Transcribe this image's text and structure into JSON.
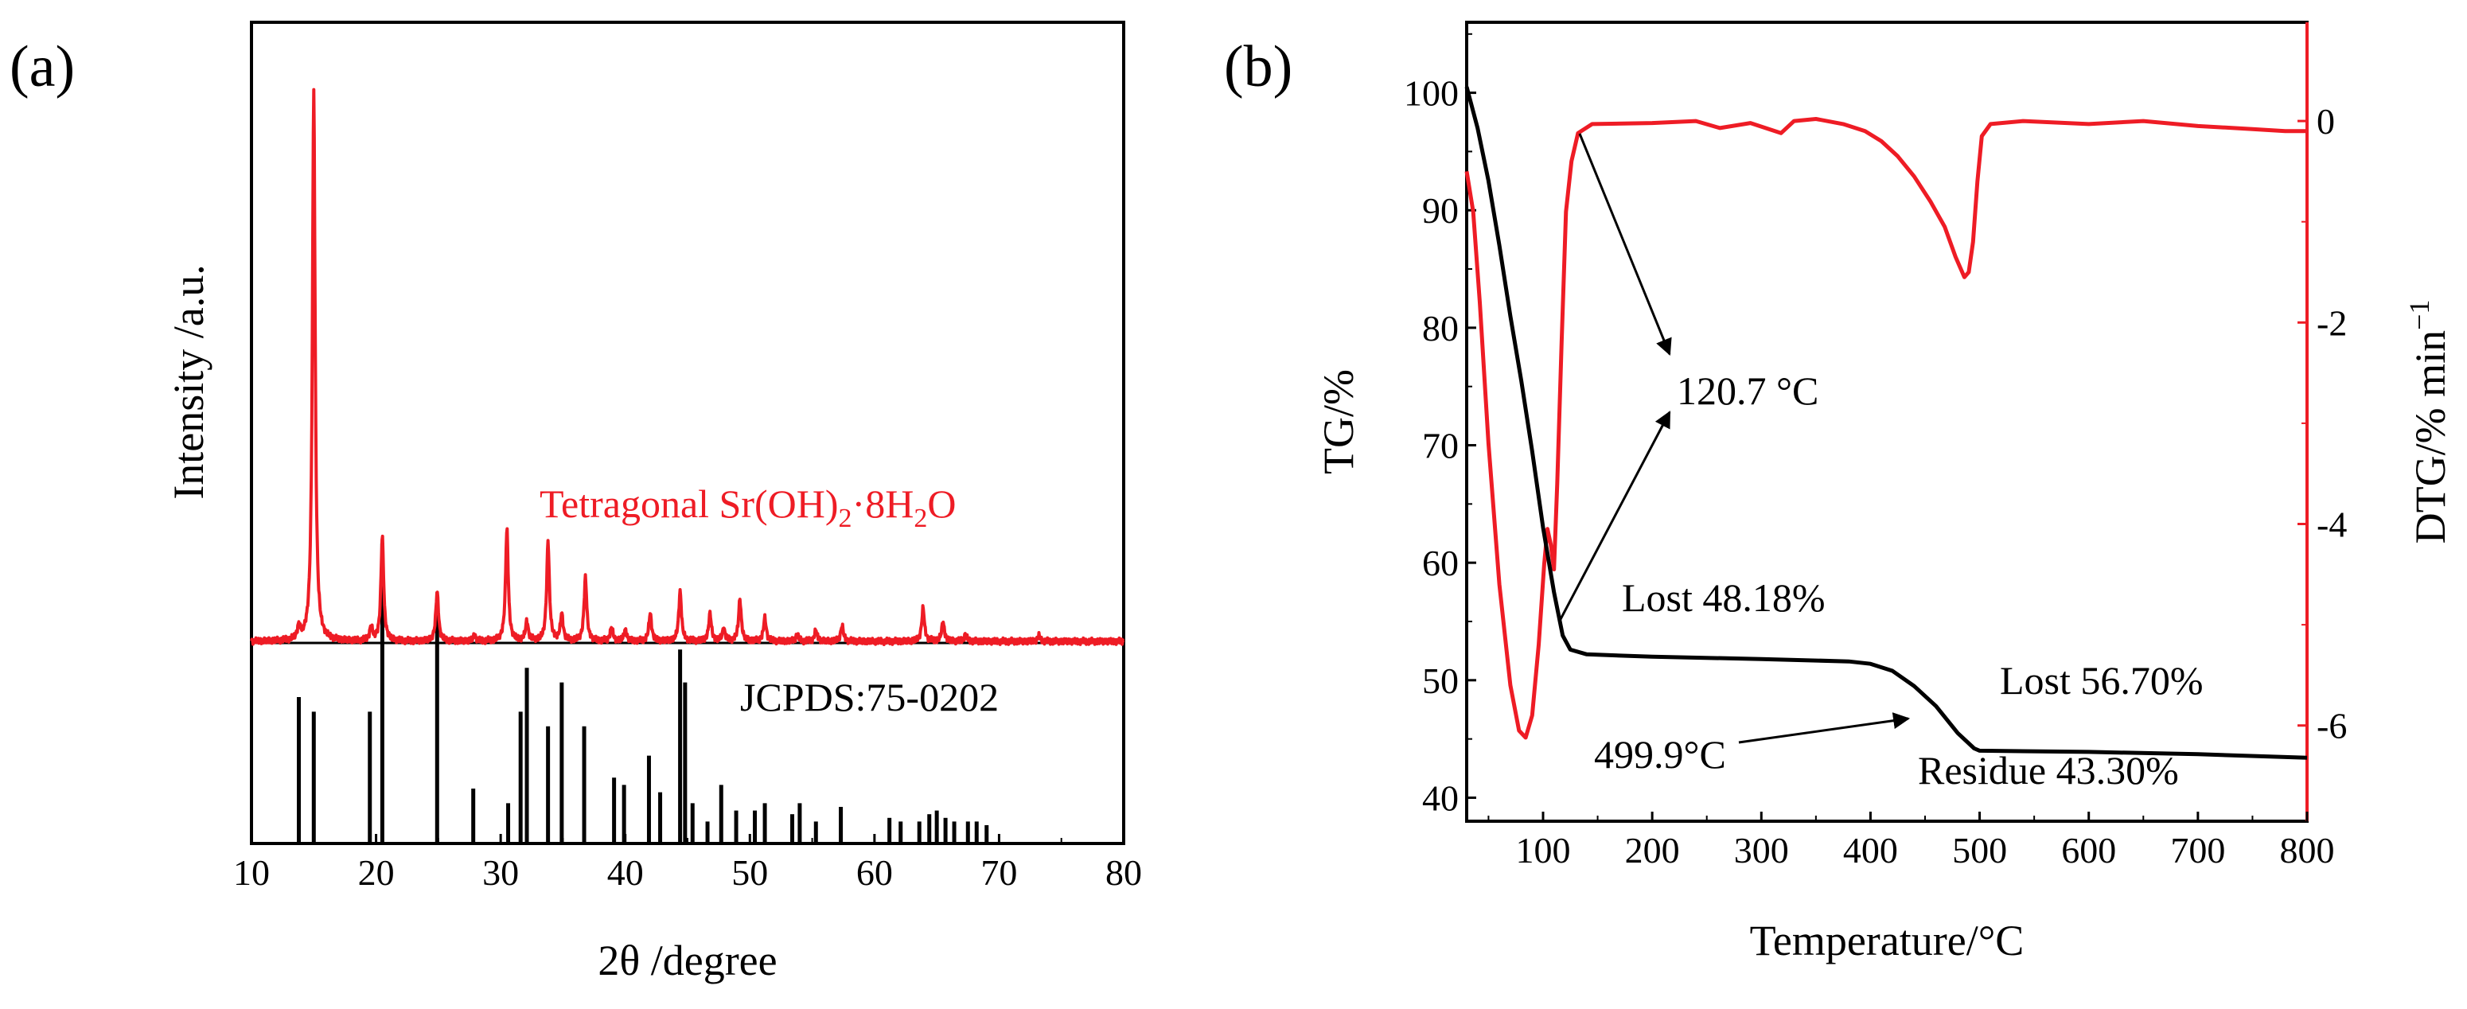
{
  "chart_data": [
    {
      "panel": "(a)",
      "type": "line",
      "xlabel": "2θ /degree",
      "ylabel": "Intensity /a.u.",
      "xlim": [
        10,
        80
      ],
      "x_ticks": [
        "10",
        "20",
        "30",
        "40",
        "50",
        "60",
        "70",
        "80"
      ],
      "colors": {
        "pattern": "#ee1c25",
        "reference": "#000000"
      },
      "pattern_label": {
        "prefix": "Tetragonal Sr(OH)",
        "sub1": "2",
        "mid": "·8H",
        "sub2": "2",
        "suffix": "O"
      },
      "reference_label": "JCPDS:75-0202",
      "pattern_peaks": [
        {
          "x": 13.8,
          "h": 2.2
        },
        {
          "x": 15.0,
          "h": 100
        },
        {
          "x": 19.6,
          "h": 2.5
        },
        {
          "x": 20.5,
          "h": 19.0
        },
        {
          "x": 24.9,
          "h": 9.0
        },
        {
          "x": 27.9,
          "h": 1.0
        },
        {
          "x": 30.5,
          "h": 20.3
        },
        {
          "x": 32.1,
          "h": 3.5
        },
        {
          "x": 33.8,
          "h": 18.0
        },
        {
          "x": 34.9,
          "h": 4.8
        },
        {
          "x": 36.8,
          "h": 11.5
        },
        {
          "x": 38.9,
          "h": 2.5
        },
        {
          "x": 40.0,
          "h": 2.0
        },
        {
          "x": 42.0,
          "h": 5.0
        },
        {
          "x": 44.4,
          "h": 9.0
        },
        {
          "x": 46.8,
          "h": 5.0
        },
        {
          "x": 47.9,
          "h": 2.2
        },
        {
          "x": 49.2,
          "h": 7.5
        },
        {
          "x": 51.2,
          "h": 4.2
        },
        {
          "x": 53.8,
          "h": 1.2
        },
        {
          "x": 55.3,
          "h": 2.0
        },
        {
          "x": 57.4,
          "h": 2.8
        },
        {
          "x": 63.9,
          "h": 6.0
        },
        {
          "x": 65.5,
          "h": 3.5
        },
        {
          "x": 67.3,
          "h": 1.2
        },
        {
          "x": 73.2,
          "h": 1.0
        }
      ],
      "reference_lines": [
        {
          "x": 13.8,
          "h": 40
        },
        {
          "x": 15.0,
          "h": 36
        },
        {
          "x": 19.5,
          "h": 36
        },
        {
          "x": 20.5,
          "h": 82
        },
        {
          "x": 24.9,
          "h": 65
        },
        {
          "x": 27.8,
          "h": 15
        },
        {
          "x": 30.6,
          "h": 11
        },
        {
          "x": 31.6,
          "h": 36
        },
        {
          "x": 32.1,
          "h": 48
        },
        {
          "x": 33.8,
          "h": 32
        },
        {
          "x": 34.9,
          "h": 44
        },
        {
          "x": 36.7,
          "h": 32
        },
        {
          "x": 39.1,
          "h": 18
        },
        {
          "x": 39.9,
          "h": 16
        },
        {
          "x": 41.9,
          "h": 24
        },
        {
          "x": 42.8,
          "h": 14
        },
        {
          "x": 44.4,
          "h": 53
        },
        {
          "x": 44.8,
          "h": 44
        },
        {
          "x": 45.4,
          "h": 11
        },
        {
          "x": 46.6,
          "h": 6
        },
        {
          "x": 47.7,
          "h": 16
        },
        {
          "x": 48.9,
          "h": 9
        },
        {
          "x": 50.4,
          "h": 9
        },
        {
          "x": 51.2,
          "h": 11
        },
        {
          "x": 53.4,
          "h": 8
        },
        {
          "x": 54.0,
          "h": 11
        },
        {
          "x": 55.3,
          "h": 6
        },
        {
          "x": 57.3,
          "h": 10
        },
        {
          "x": 61.2,
          "h": 7
        },
        {
          "x": 62.1,
          "h": 6
        },
        {
          "x": 63.6,
          "h": 6
        },
        {
          "x": 64.4,
          "h": 8
        },
        {
          "x": 65.0,
          "h": 9
        },
        {
          "x": 65.7,
          "h": 7
        },
        {
          "x": 66.4,
          "h": 6
        },
        {
          "x": 67.5,
          "h": 6
        },
        {
          "x": 68.2,
          "h": 6
        },
        {
          "x": 69.0,
          "h": 5
        }
      ]
    },
    {
      "panel": "(b)",
      "type": "line",
      "xlabel": "Temperature/°C",
      "ylabel": "TG/%",
      "y2label": "DTG/% min",
      "y2label_exponent": "−1",
      "xlim": [
        30,
        800
      ],
      "ylim": [
        38,
        106
      ],
      "y2lim": [
        -6.95,
        0.98
      ],
      "x_ticks": [
        {
          "v": 100,
          "label": "100"
        },
        {
          "v": 200,
          "label": "200"
        },
        {
          "v": 300,
          "label": "300"
        },
        {
          "v": 400,
          "label": "400"
        },
        {
          "v": 500,
          "label": "500"
        },
        {
          "v": 600,
          "label": "600"
        },
        {
          "v": 700,
          "label": "700"
        },
        {
          "v": 800,
          "label": "800"
        }
      ],
      "y_ticks": [
        {
          "v": 40,
          "label": "40"
        },
        {
          "v": 50,
          "label": "50"
        },
        {
          "v": 60,
          "label": "60"
        },
        {
          "v": 70,
          "label": "70"
        },
        {
          "v": 80,
          "label": "80"
        },
        {
          "v": 90,
          "label": "90"
        },
        {
          "v": 100,
          "label": "100"
        }
      ],
      "y2_ticks": [
        {
          "v": 0,
          "label": "0"
        },
        {
          "v": -2,
          "label": "-2"
        },
        {
          "v": -4,
          "label": "-4"
        },
        {
          "v": -6,
          "label": "-6"
        }
      ],
      "colors": {
        "tg": "#000000",
        "dtg": "#ee1c25"
      },
      "series": [
        {
          "name": "TG",
          "axis": "left",
          "points": [
            [
              30,
              100.5
            ],
            [
              40,
              97
            ],
            [
              50,
              92.5
            ],
            [
              60,
              87
            ],
            [
              70,
              81
            ],
            [
              80,
              75.5
            ],
            [
              90,
              69.5
            ],
            [
              100,
              63
            ],
            [
              110,
              57.5
            ],
            [
              118,
              53.8
            ],
            [
              125,
              52.6
            ],
            [
              140,
              52.2
            ],
            [
              200,
              52.0
            ],
            [
              300,
              51.8
            ],
            [
              380,
              51.6
            ],
            [
              400,
              51.4
            ],
            [
              420,
              50.8
            ],
            [
              440,
              49.5
            ],
            [
              460,
              47.8
            ],
            [
              480,
              45.5
            ],
            [
              495,
              44.2
            ],
            [
              500,
              44.0
            ],
            [
              600,
              43.9
            ],
            [
              700,
              43.7
            ],
            [
              800,
              43.4
            ]
          ]
        },
        {
          "name": "DTG",
          "axis": "right",
          "points": [
            [
              30,
              -0.5
            ],
            [
              36,
              -0.9
            ],
            [
              42,
              -1.8
            ],
            [
              50,
              -3.2
            ],
            [
              60,
              -4.6
            ],
            [
              70,
              -5.6
            ],
            [
              78,
              -6.05
            ],
            [
              84,
              -6.12
            ],
            [
              90,
              -5.9
            ],
            [
              96,
              -5.2
            ],
            [
              101,
              -4.4
            ],
            [
              104,
              -4.05
            ],
            [
              107,
              -4.2
            ],
            [
              110,
              -4.45
            ],
            [
              113,
              -3.6
            ],
            [
              117,
              -2.2
            ],
            [
              121,
              -0.9
            ],
            [
              126,
              -0.4
            ],
            [
              132,
              -0.12
            ],
            [
              145,
              -0.03
            ],
            [
              200,
              -0.02
            ],
            [
              240,
              0.0
            ],
            [
              262,
              -0.07
            ],
            [
              290,
              -0.02
            ],
            [
              318,
              -0.12
            ],
            [
              330,
              0.0
            ],
            [
              350,
              0.02
            ],
            [
              375,
              -0.03
            ],
            [
              395,
              -0.1
            ],
            [
              410,
              -0.2
            ],
            [
              425,
              -0.35
            ],
            [
              440,
              -0.55
            ],
            [
              455,
              -0.8
            ],
            [
              468,
              -1.05
            ],
            [
              478,
              -1.35
            ],
            [
              486,
              -1.55
            ],
            [
              490,
              -1.5
            ],
            [
              494,
              -1.2
            ],
            [
              498,
              -0.6
            ],
            [
              502,
              -0.15
            ],
            [
              510,
              -0.03
            ],
            [
              540,
              0.0
            ],
            [
              600,
              -0.03
            ],
            [
              650,
              0.0
            ],
            [
              700,
              -0.05
            ],
            [
              750,
              -0.08
            ],
            [
              780,
              -0.1
            ],
            [
              800,
              -0.1
            ]
          ]
        }
      ],
      "annotations": [
        {
          "text": "120.7 °C"
        },
        {
          "text": "Lost 48.18%"
        },
        {
          "text": "499.9°C"
        },
        {
          "text": "Lost 56.70%"
        },
        {
          "text": "Residue 43.30%"
        }
      ]
    }
  ]
}
